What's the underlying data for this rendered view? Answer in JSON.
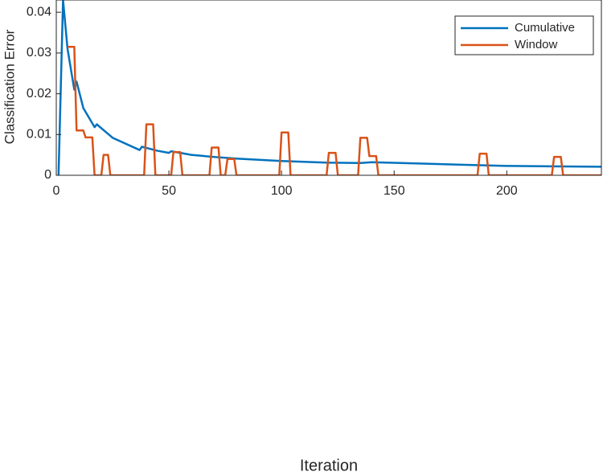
{
  "chart_data": {
    "type": "line",
    "x_label": "Iteration",
    "y_label": "Classification Error",
    "xlim": [
      0,
      242
    ],
    "ylim": [
      0,
      0.043
    ],
    "xticks": [
      0,
      50,
      100,
      150,
      200
    ],
    "yticks": [
      0,
      0.01,
      0.02,
      0.03,
      0.04
    ],
    "grid": false,
    "legend": "upper right",
    "series": [
      {
        "name": "Cumulative",
        "color": "#0072BD",
        "x": [
          1,
          3,
          5,
          8,
          9,
          12,
          17,
          18,
          25,
          37,
          38,
          45,
          50,
          51,
          60,
          70,
          80,
          100,
          120,
          135,
          140,
          160,
          180,
          200,
          220,
          242
        ],
        "values": [
          0,
          0.043,
          0.031,
          0.021,
          0.023,
          0.0165,
          0.0118,
          0.0125,
          0.0092,
          0.0062,
          0.007,
          0.006,
          0.0055,
          0.0059,
          0.005,
          0.0045,
          0.0041,
          0.0035,
          0.0031,
          0.003,
          0.0032,
          0.0029,
          0.0026,
          0.0023,
          0.0022,
          0.0021
        ]
      },
      {
        "name": "Window",
        "color": "#D95319",
        "x": [
          5,
          8,
          9,
          12,
          13,
          16,
          17,
          20,
          21,
          23,
          24,
          39,
          40,
          43,
          44,
          51,
          52,
          55,
          56,
          68,
          69,
          72,
          73,
          75,
          76,
          79,
          80,
          99,
          100,
          103,
          104,
          120,
          121,
          124,
          125,
          134,
          135,
          138,
          139,
          142,
          143,
          187,
          188,
          191,
          192,
          220,
          221,
          224,
          225,
          242
        ],
        "values": [
          0.0315,
          0.0315,
          0.011,
          0.011,
          0.0093,
          0.0093,
          0,
          0,
          0.005,
          0.005,
          0,
          0,
          0.0125,
          0.0125,
          0,
          0,
          0.0057,
          0.0057,
          0,
          0,
          0.0068,
          0.0068,
          0,
          0,
          0.004,
          0.004,
          0,
          0,
          0.0105,
          0.0105,
          0,
          0,
          0.0055,
          0.0055,
          0,
          0,
          0.0092,
          0.0092,
          0.0047,
          0.0047,
          0,
          0,
          0.0053,
          0.0053,
          0,
          0,
          0.0045,
          0.0045,
          0,
          0
        ]
      }
    ]
  }
}
